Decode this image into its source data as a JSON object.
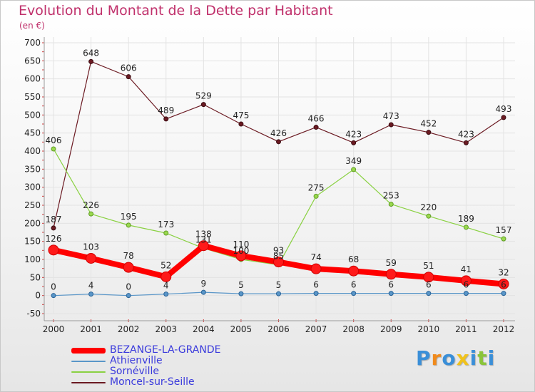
{
  "title": "Evolution du Montant de la Dette par Habitant",
  "subtitle": "(en €)",
  "chart_data": {
    "type": "line",
    "title": "Evolution du Montant de la Dette par Habitant",
    "subtitle": "(en €)",
    "xlabel": "",
    "ylabel": "",
    "x": [
      "2000",
      "2001",
      "2002",
      "2003",
      "2004",
      "2005",
      "2006",
      "2007",
      "2008",
      "2009",
      "2010",
      "2011",
      "2012"
    ],
    "ylim": [
      -50,
      700
    ],
    "yticks": [
      -50,
      0,
      50,
      100,
      150,
      200,
      250,
      300,
      350,
      400,
      450,
      500,
      550,
      600,
      650,
      700
    ],
    "grid": true,
    "legend_position": "bottom-left",
    "series": [
      {
        "name": "Moncel-sur-Seille",
        "color": "#6b1a22",
        "values": [
          187,
          648,
          606,
          489,
          529,
          475,
          426,
          466,
          423,
          473,
          452,
          423,
          493
        ]
      },
      {
        "name": "Sornéville",
        "color": "#8ad142",
        "values": [
          406,
          226,
          195,
          173,
          131,
          100,
          85,
          275,
          349,
          253,
          220,
          189,
          157
        ]
      },
      {
        "name": "Athienville",
        "color": "#5a96c8",
        "values": [
          0,
          4,
          0,
          4,
          9,
          5,
          5,
          6,
          6,
          6,
          6,
          6,
          6
        ]
      },
      {
        "name": "BEZANGE-LA-GRANDE",
        "color": "#ff0000",
        "values": [
          126,
          103,
          78,
          52,
          138,
          110,
          93,
          74,
          68,
          59,
          51,
          41,
          32
        ]
      }
    ]
  },
  "legend": [
    {
      "label": "BEZANGE-LA-GRANDE",
      "color": "#ff0000"
    },
    {
      "label": "Athienville",
      "color": "#5a96c8"
    },
    {
      "label": "Sornéville",
      "color": "#8ad142"
    },
    {
      "label": "Moncel-sur-Seille",
      "color": "#6b1a22"
    }
  ],
  "logo": {
    "letters": [
      "P",
      "r",
      "o",
      "x",
      "i",
      "t",
      "i"
    ],
    "colors": [
      "#3a8fd8",
      "#f08a1c",
      "#3a8fd8",
      "#f0c21c",
      "#3a8fd8",
      "#8ac43a",
      "#3a8fd8"
    ]
  }
}
